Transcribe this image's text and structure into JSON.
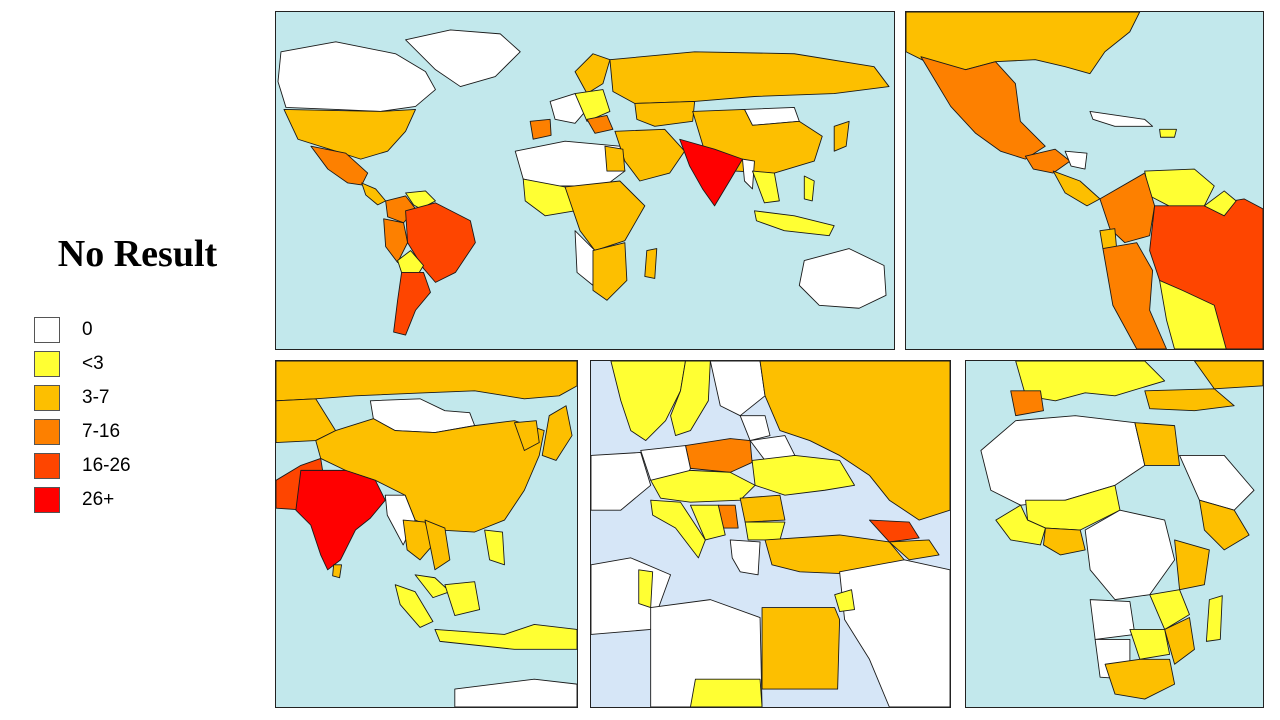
{
  "title": "No Result",
  "colors": {
    "ocean": "#c2e8ec",
    "sea_inland": "#d6e6f7",
    "c0": "#ffffff",
    "c1": "#ffff33",
    "c2": "#fdbf00",
    "c3": "#fd8000",
    "c4": "#fe4500",
    "c5": "#ff0000"
  },
  "legend": [
    {
      "label": "0",
      "color": "#ffffff"
    },
    {
      "label": "<3",
      "color": "#ffff33"
    },
    {
      "label": "3-7",
      "color": "#fdbf00"
    },
    {
      "label": "7-16",
      "color": "#fd8000"
    },
    {
      "label": "16-26",
      "color": "#fe4500"
    },
    {
      "label": "26+",
      "color": "#ff0000"
    }
  ],
  "panels": [
    {
      "region": "World"
    },
    {
      "region": "Americas"
    },
    {
      "region": "Asia"
    },
    {
      "region": "Europe"
    },
    {
      "region": "Africa"
    }
  ]
}
